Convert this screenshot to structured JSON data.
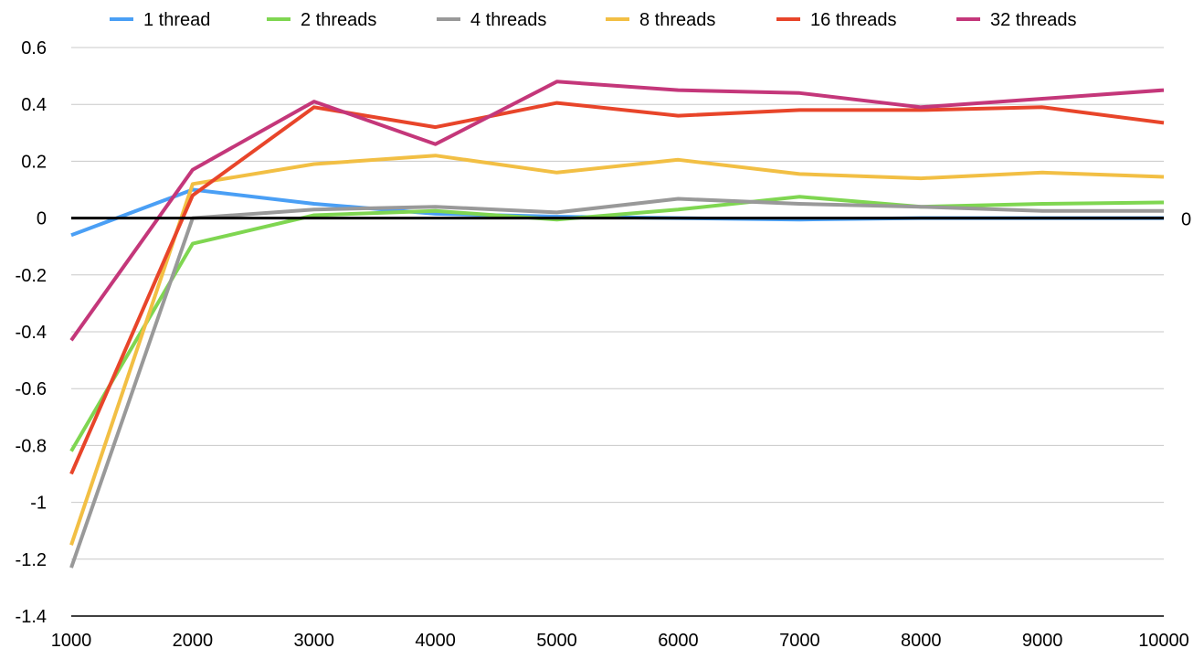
{
  "chart_data": {
    "type": "line",
    "title": "",
    "xlabel": "",
    "ylabel": "",
    "x": [
      1000,
      2000,
      3000,
      4000,
      5000,
      6000,
      7000,
      8000,
      9000,
      10000
    ],
    "x_tick_labels": [
      "1000",
      "2000",
      "3000",
      "4000",
      "5000",
      "6000",
      "7000",
      "8000",
      "9000",
      "10000"
    ],
    "ylim": [
      -1.4,
      0.6
    ],
    "y_ticks": [
      0.6,
      0.4,
      0.2,
      0,
      -0.2,
      -0.4,
      -0.6,
      -0.8,
      -1,
      -1.2,
      -1.4
    ],
    "y_tick_labels": [
      "0.6",
      "0.4",
      "0.2",
      "0",
      "-0.2",
      "-0.4",
      "-0.6",
      "-0.8",
      "-1",
      "-1.2",
      "-1.4"
    ],
    "grid": true,
    "legend_position": "top",
    "reference_line": {
      "value": 0,
      "label": "0",
      "color": "#000000"
    },
    "series": [
      {
        "name": "1 thread",
        "color": "#4A9FF5",
        "values": [
          -0.06,
          0.1,
          0.05,
          0.015,
          0.005,
          0.0,
          -0.005,
          0.0,
          0.0,
          0.0
        ]
      },
      {
        "name": "2 threads",
        "color": "#7FD651",
        "values": [
          -0.82,
          -0.09,
          0.01,
          0.025,
          -0.005,
          0.03,
          0.075,
          0.04,
          0.05,
          0.055
        ]
      },
      {
        "name": "4 threads",
        "color": "#999999",
        "values": [
          -1.23,
          0.0,
          0.03,
          0.04,
          0.02,
          0.068,
          0.05,
          0.04,
          0.025,
          0.025
        ]
      },
      {
        "name": "8 threads",
        "color": "#F2BF44",
        "values": [
          -1.15,
          0.12,
          0.19,
          0.22,
          0.16,
          0.205,
          0.155,
          0.14,
          0.16,
          0.145
        ]
      },
      {
        "name": "16 threads",
        "color": "#E8452A",
        "values": [
          -0.9,
          0.08,
          0.39,
          0.32,
          0.405,
          0.36,
          0.38,
          0.38,
          0.39,
          0.335
        ]
      },
      {
        "name": "32 threads",
        "color": "#C4377A",
        "values": [
          -0.43,
          0.17,
          0.41,
          0.26,
          0.48,
          0.45,
          0.44,
          0.39,
          0.42,
          0.45
        ]
      }
    ]
  }
}
